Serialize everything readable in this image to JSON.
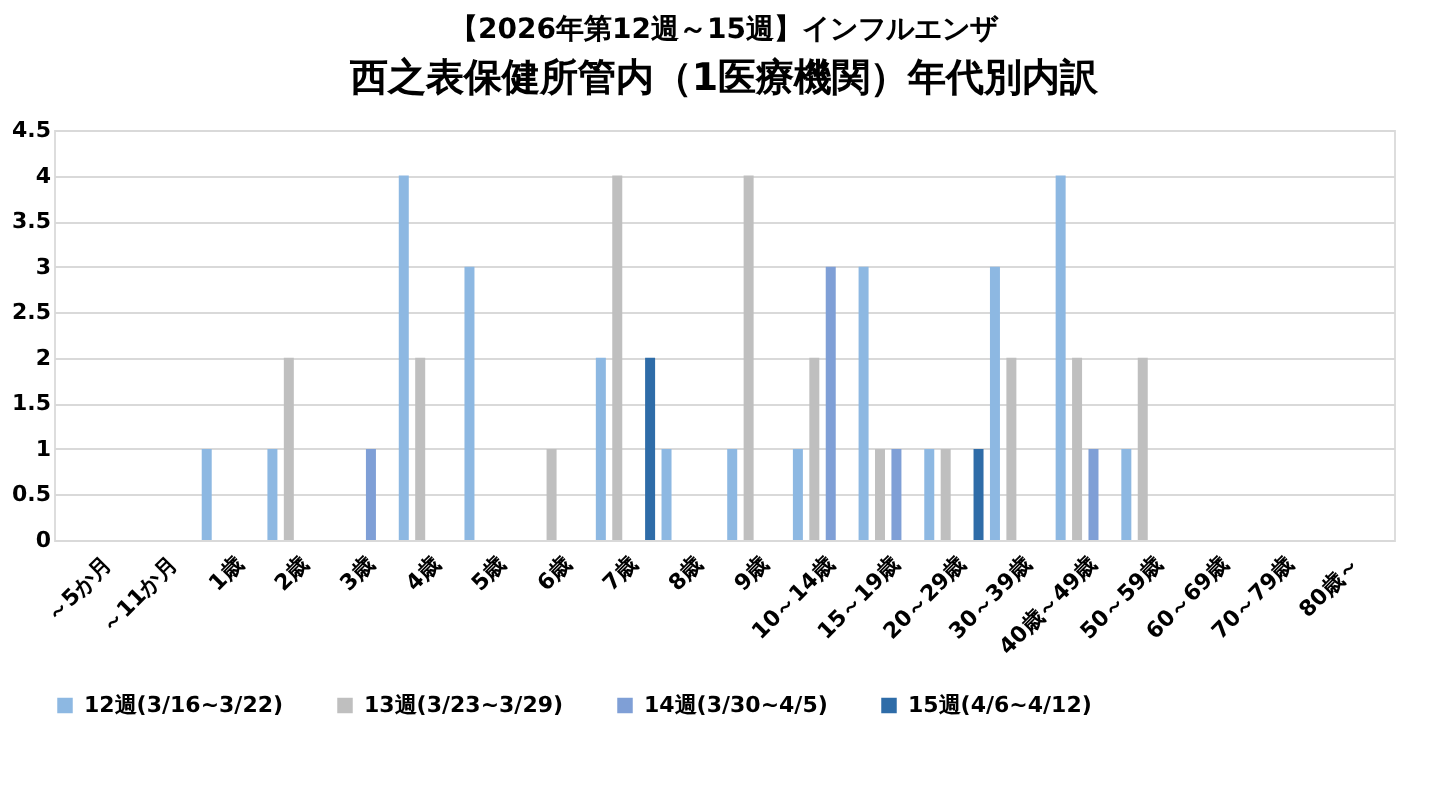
{
  "chart_data": {
    "type": "bar",
    "title": "【2026年第12週～15週】インフルエンザ",
    "subtitle": "西之表保健所管内（1医療機関）年代別内訳",
    "categories": [
      "～5か月",
      "～11か月",
      "1歳",
      "2歳",
      "3歳",
      "4歳",
      "5歳",
      "6歳",
      "7歳",
      "8歳",
      "9歳",
      "10～14歳",
      "15～19歳",
      "20～29歳",
      "30～39歳",
      "40歳～49歳",
      "50～59歳",
      "60～69歳",
      "70～79歳",
      "80歳～"
    ],
    "series": [
      {
        "name": "12週(3/16~3/22)",
        "color": "#8db8e2",
        "values": [
          0,
          0,
          1,
          1,
          0,
          4,
          3,
          0,
          2,
          1,
          1,
          1,
          3,
          1,
          3,
          4,
          1,
          0,
          0,
          0
        ]
      },
      {
        "name": "13週(3/23~3/29)",
        "color": "#bfbfbf",
        "values": [
          0,
          0,
          0,
          2,
          0,
          2,
          0,
          1,
          4,
          0,
          4,
          2,
          1,
          1,
          2,
          2,
          2,
          0,
          0,
          0
        ]
      },
      {
        "name": "14週(3/30~4/5)",
        "color": "#7f9fd6",
        "values": [
          0,
          0,
          0,
          0,
          1,
          0,
          0,
          0,
          0,
          0,
          0,
          3,
          1,
          0,
          0,
          1,
          0,
          0,
          0,
          0
        ]
      },
      {
        "name": "15週(4/6~4/12)",
        "color": "#2e6ca8",
        "values": [
          0,
          0,
          0,
          0,
          0,
          0,
          0,
          0,
          2,
          0,
          0,
          0,
          0,
          1,
          0,
          0,
          0,
          0,
          0,
          0
        ]
      }
    ],
    "ylim": [
      0,
      4.5
    ],
    "yticks": [
      0,
      0.5,
      1,
      1.5,
      2,
      2.5,
      3,
      3.5,
      4,
      4.5
    ],
    "grid": "y",
    "legend": "bottom"
  }
}
